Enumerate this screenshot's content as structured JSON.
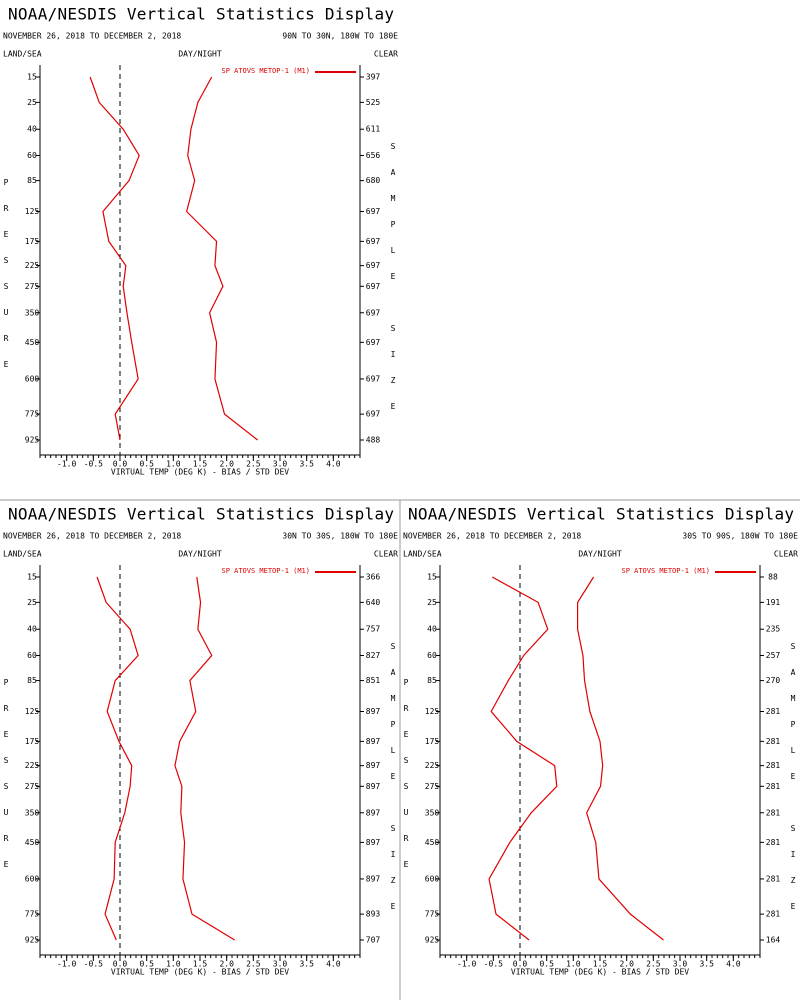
{
  "chart_data": [
    {
      "type": "line",
      "title": "NOAA/NESDIS Vertical Statistics Display",
      "date_range": "NOVEMBER 26, 2018 TO DECEMBER 2, 2018",
      "region": "90N TO 30N, 180W TO 180E",
      "land_sea": "LAND/SEA",
      "day_night": "DAY/NIGHT",
      "clear": "CLEAR",
      "y_label": "PRESSURE",
      "y2_label": "SAMPLE SIZE",
      "x_label": "VIRTUAL TEMP (DEG K) - BIAS / STD DEV",
      "levels": [
        15,
        25,
        40,
        60,
        85,
        125,
        175,
        225,
        275,
        350,
        450,
        600,
        775,
        925
      ],
      "sample_size": [
        397,
        525,
        611,
        656,
        680,
        697,
        697,
        697,
        697,
        697,
        697,
        697,
        697,
        488
      ],
      "xlim": [
        -1.5,
        4.5
      ],
      "xticks": [
        {
          "value": -1,
          "label": "-1.0"
        },
        {
          "value": -0.5,
          "label": "-0.5"
        },
        {
          "value": 0,
          "label": "0.0"
        },
        {
          "value": 0.5,
          "label": "0.5"
        },
        {
          "value": 1,
          "label": "1.0"
        },
        {
          "value": 1.5,
          "label": "1.5"
        },
        {
          "value": 2,
          "label": "2.0"
        },
        {
          "value": 2.5,
          "label": "2.5"
        },
        {
          "value": 3,
          "label": "3.0"
        },
        {
          "value": 3.5,
          "label": "3.5"
        },
        {
          "value": 4,
          "label": "4.0"
        }
      ],
      "series": [
        {
          "name": "SP ATOVS METOP-1 (M1)",
          "color": "#e00000",
          "bias": [
            -0.56,
            -0.39,
            0.06,
            0.36,
            0.17,
            -0.32,
            -0.21,
            0.11,
            0.06,
            0.13,
            0.22,
            0.34,
            -0.09,
            0.0
          ],
          "std_dev": [
            1.72,
            1.46,
            1.33,
            1.27,
            1.4,
            1.25,
            1.81,
            1.78,
            1.93,
            1.68,
            1.81,
            1.78,
            1.96,
            2.58
          ]
        }
      ]
    },
    {
      "type": "line",
      "title": "NOAA/NESDIS Vertical Statistics Display",
      "date_range": "NOVEMBER 26, 2018 TO DECEMBER 2, 2018",
      "region": "30N TO 30S, 180W TO 180E",
      "land_sea": "LAND/SEA",
      "day_night": "DAY/NIGHT",
      "clear": "CLEAR",
      "y_label": "PRESSURE",
      "y2_label": "SAMPLE SIZE",
      "x_label": "VIRTUAL TEMP (DEG K) - BIAS / STD DEV",
      "levels": [
        15,
        25,
        40,
        60,
        85,
        125,
        175,
        225,
        275,
        350,
        450,
        600,
        775,
        925
      ],
      "sample_size": [
        366,
        640,
        757,
        827,
        851,
        897,
        897,
        897,
        897,
        897,
        897,
        897,
        893,
        707
      ],
      "xlim": [
        -1.5,
        4.5
      ],
      "xticks": [
        {
          "value": -1,
          "label": "-1.0"
        },
        {
          "value": -0.5,
          "label": "-0.5"
        },
        {
          "value": 0,
          "label": "0.0"
        },
        {
          "value": 0.5,
          "label": "0.5"
        },
        {
          "value": 1,
          "label": "1.0"
        },
        {
          "value": 1.5,
          "label": "1.5"
        },
        {
          "value": 2,
          "label": "2.0"
        },
        {
          "value": 2.5,
          "label": "2.5"
        },
        {
          "value": 3,
          "label": "3.0"
        },
        {
          "value": 3.5,
          "label": "3.5"
        },
        {
          "value": 4,
          "label": "4.0"
        }
      ],
      "series": [
        {
          "name": "SP ATOVS METOP-1 (M1)",
          "color": "#e00000",
          "bias": [
            -0.43,
            -0.26,
            0.19,
            0.34,
            -0.09,
            -0.24,
            -0.02,
            0.22,
            0.19,
            0.09,
            -0.09,
            -0.11,
            -0.28,
            -0.07
          ],
          "std_dev": [
            1.44,
            1.51,
            1.46,
            1.72,
            1.31,
            1.42,
            1.12,
            1.03,
            1.16,
            1.14,
            1.21,
            1.18,
            1.35,
            2.15
          ]
        }
      ]
    },
    {
      "type": "line",
      "title": "NOAA/NESDIS Vertical Statistics Display",
      "date_range": "NOVEMBER 26, 2018 TO DECEMBER 2, 2018",
      "region": "30S TO 90S, 180W TO 180E",
      "land_sea": "LAND/SEA",
      "day_night": "DAY/NIGHT",
      "clear": "CLEAR",
      "y_label": "PRESSURE",
      "y2_label": "SAMPLE SIZE",
      "x_label": "VIRTUAL TEMP (DEG K) - BIAS / STD DEV",
      "levels": [
        15,
        25,
        40,
        60,
        85,
        125,
        175,
        225,
        275,
        350,
        450,
        600,
        775,
        925
      ],
      "sample_size": [
        88,
        191,
        235,
        257,
        270,
        281,
        281,
        281,
        281,
        281,
        281,
        281,
        281,
        164
      ],
      "xlim": [
        -1.5,
        4.5
      ],
      "xticks": [
        {
          "value": -1,
          "label": "-1.0"
        },
        {
          "value": -0.5,
          "label": "-0.5"
        },
        {
          "value": 0,
          "label": "0.0"
        },
        {
          "value": 0.5,
          "label": "0.5"
        },
        {
          "value": 1,
          "label": "1.0"
        },
        {
          "value": 1.5,
          "label": "1.5"
        },
        {
          "value": 2,
          "label": "2.0"
        },
        {
          "value": 2.5,
          "label": "2.5"
        },
        {
          "value": 3,
          "label": "3.0"
        },
        {
          "value": 3.5,
          "label": "3.5"
        },
        {
          "value": 4,
          "label": "4.0"
        }
      ],
      "series": [
        {
          "name": "SP ATOVS METOP-1 (M1)",
          "color": "#e00000",
          "bias": [
            -0.52,
            0.34,
            0.52,
            0.07,
            -0.22,
            -0.54,
            -0.06,
            0.65,
            0.69,
            0.21,
            -0.19,
            -0.58,
            -0.45,
            0.17
          ],
          "std_dev": [
            1.38,
            1.08,
            1.08,
            1.18,
            1.21,
            1.31,
            1.5,
            1.55,
            1.51,
            1.25,
            1.42,
            1.48,
            2.07,
            2.69
          ]
        }
      ]
    }
  ]
}
